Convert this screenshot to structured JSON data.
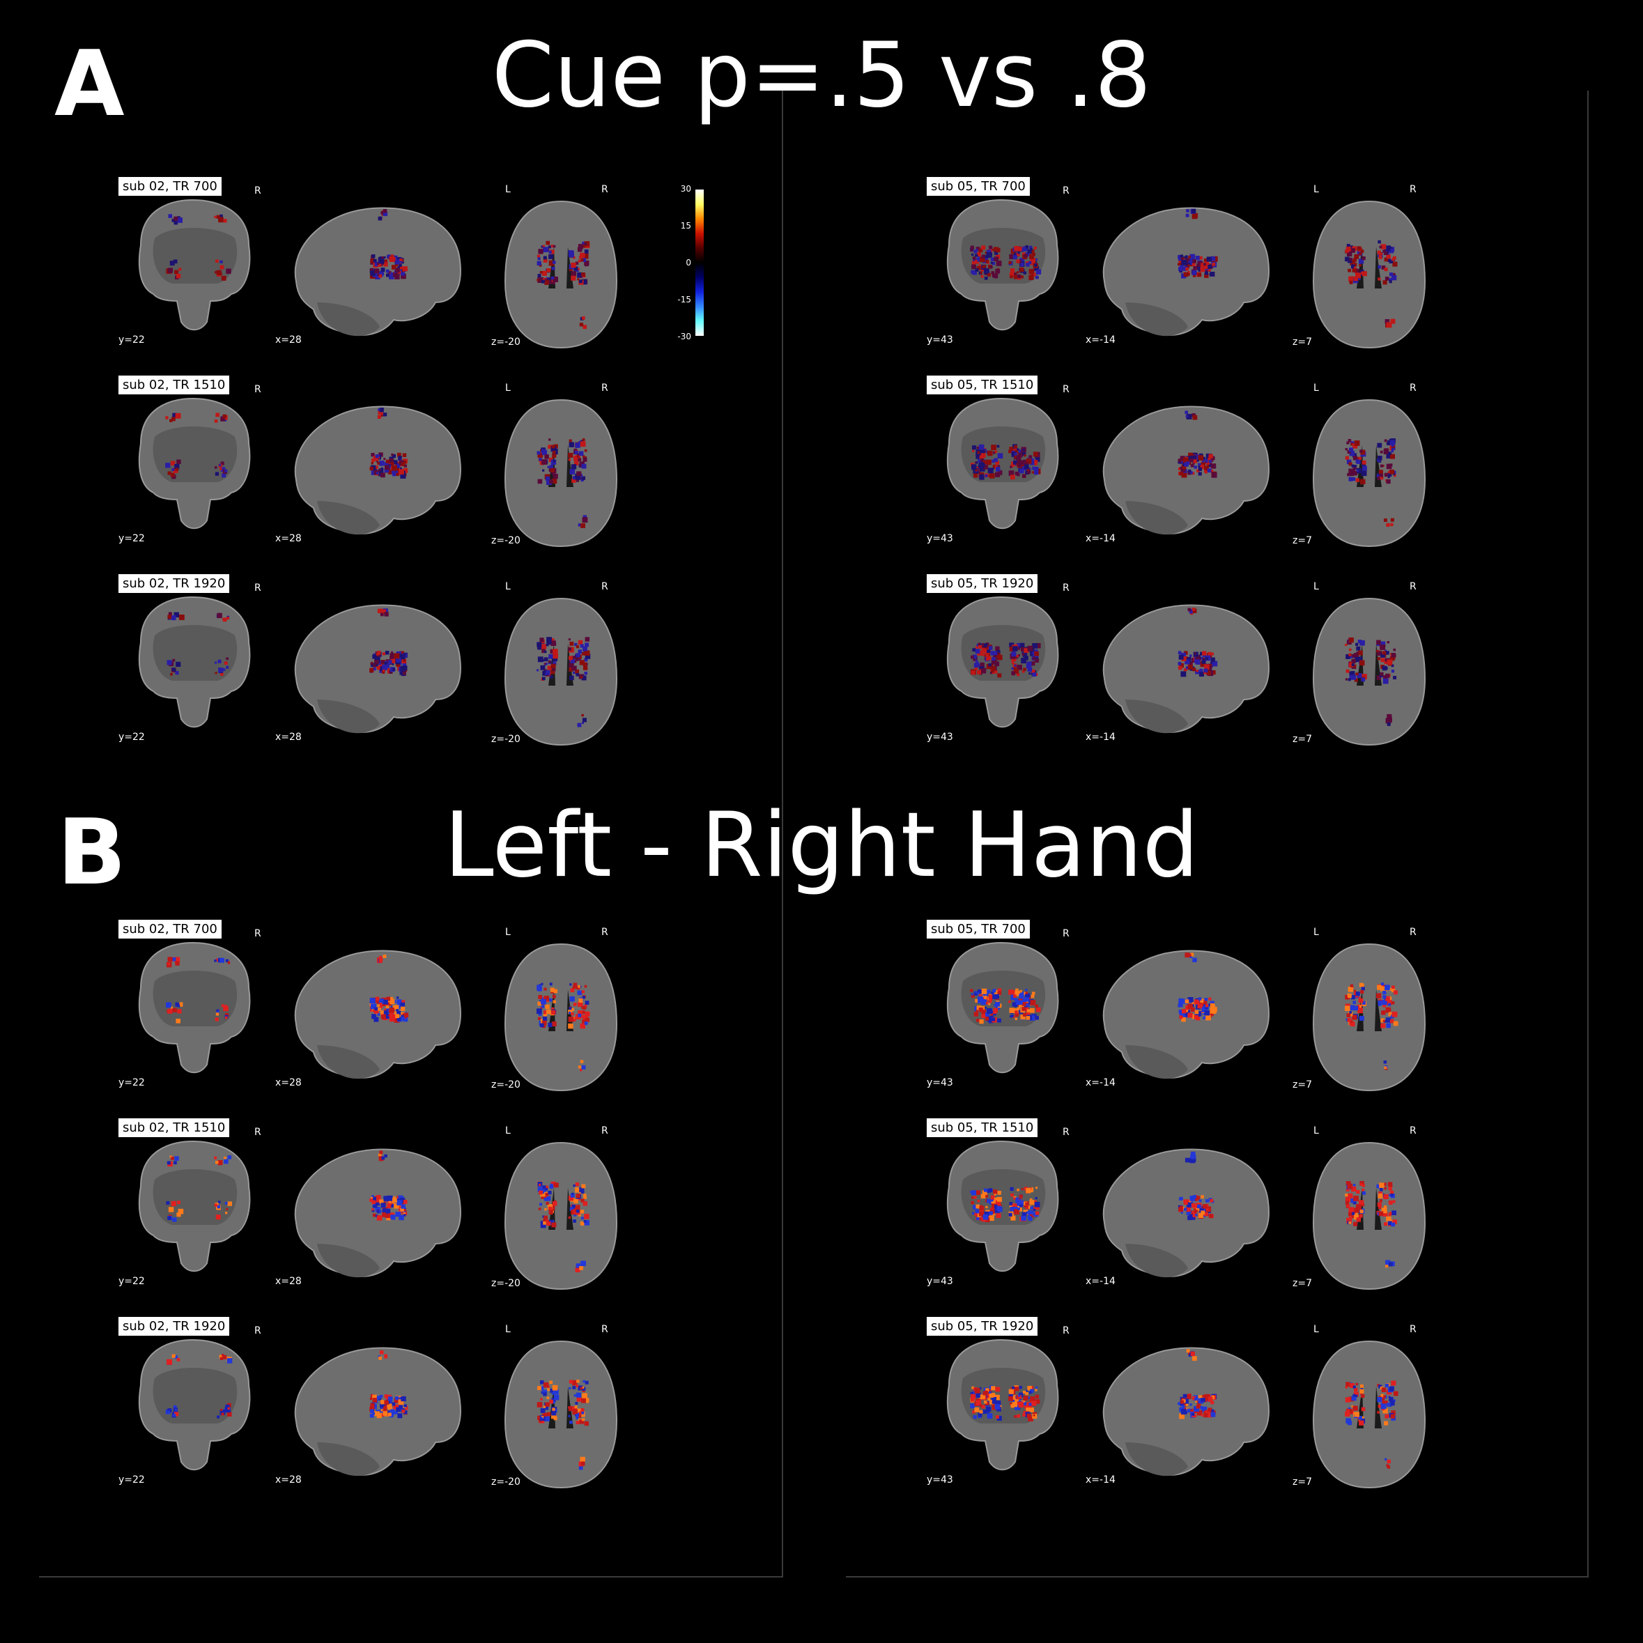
{
  "panels": [
    {
      "letter": "A",
      "title": "Cue p=.5 vs .8",
      "palette": [
        "#8a0d0d",
        "#c01818",
        "#2a1ea6",
        "#1c1270",
        "#5a0a3a"
      ],
      "subjects": [
        {
          "rows": [
            {
              "label": "sub 02, TR 700"
            },
            {
              "label": "sub 02, TR 1510"
            },
            {
              "label": "sub 02, TR 1920"
            }
          ],
          "coronal_coord": "y=22",
          "sagittal_coord": "x=28",
          "axial_coord": "z=-20"
        },
        {
          "rows": [
            {
              "label": "sub 05, TR 700"
            },
            {
              "label": "sub 05, TR 1510"
            },
            {
              "label": "sub 05, TR 1920"
            }
          ],
          "coronal_coord": "y=43",
          "sagittal_coord": "x=-14",
          "axial_coord": "z=7"
        }
      ]
    },
    {
      "letter": "B",
      "title": "Left - Right Hand",
      "palette": [
        "#c01818",
        "#e02020",
        "#2238d8",
        "#1a22b0",
        "#ff7a1a"
      ],
      "subjects": [
        {
          "rows": [
            {
              "label": "sub 02, TR 700"
            },
            {
              "label": "sub 02, TR 1510"
            },
            {
              "label": "sub 02, TR 1920"
            }
          ],
          "coronal_coord": "y=22",
          "sagittal_coord": "x=28",
          "axial_coord": "z=-20"
        },
        {
          "rows": [
            {
              "label": "sub 05, TR 700"
            },
            {
              "label": "sub 05, TR 1510"
            },
            {
              "label": "sub 05, TR 1920"
            }
          ],
          "coronal_coord": "y=43",
          "sagittal_coord": "x=-14",
          "axial_coord": "z=7"
        }
      ]
    }
  ],
  "orientation": {
    "left": "L",
    "right": "R"
  },
  "colorbar": {
    "ticks": [
      "30",
      "15",
      "0",
      "-15",
      "-30"
    ],
    "colors": [
      "#ffffff",
      "#ffff66",
      "#ff8800",
      "#cc1100",
      "#550000",
      "#000000",
      "#000066",
      "#1122dd",
      "#3388ff",
      "#66ffff",
      "#ffffff"
    ]
  }
}
